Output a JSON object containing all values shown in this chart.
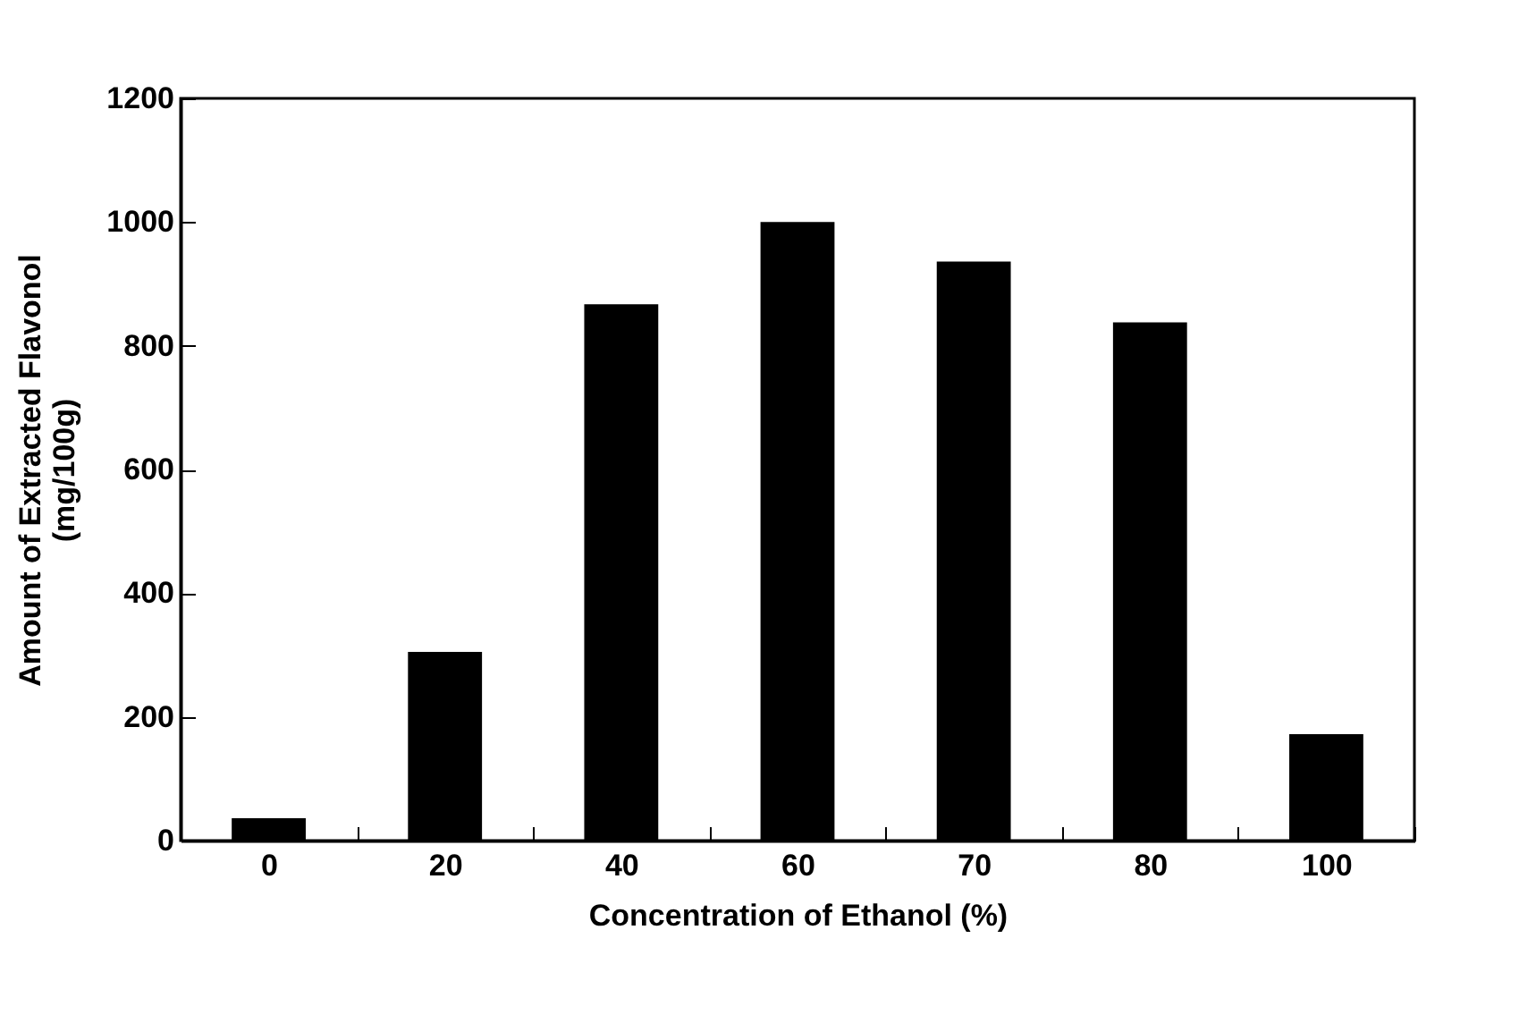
{
  "chart_data": {
    "type": "bar",
    "xlabel": "Concentration of Ethanol (%)",
    "ylabel": "Amount of Extracted Flavonol\n(mg/100g)",
    "categories": [
      "0",
      "20",
      "40",
      "60",
      "70",
      "80",
      "100"
    ],
    "values": [
      36,
      305,
      867,
      1000,
      936,
      838,
      172
    ],
    "color": "#000000",
    "ylim": [
      0,
      1200
    ],
    "yticks": [
      0,
      200,
      400,
      600,
      800,
      1000,
      1200
    ],
    "grid": false
  }
}
